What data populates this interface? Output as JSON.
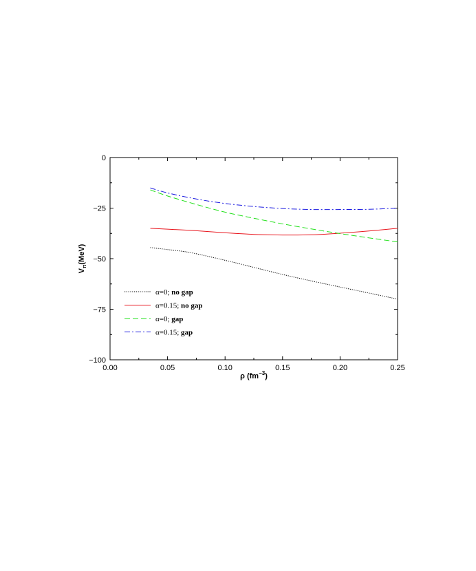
{
  "chart_data": {
    "type": "line",
    "xlabel": {
      "main": "ρ (fm",
      "sup": "−3",
      "tail": ")"
    },
    "ylabel": {
      "main": "V",
      "sub": "π",
      "tail": "(MeV)"
    },
    "xlim": [
      0.0,
      0.25
    ],
    "ylim": [
      -100,
      0
    ],
    "xticks": [
      0.0,
      0.05,
      0.1,
      0.15,
      0.2,
      0.25
    ],
    "xtick_labels": [
      "0.00",
      "0.05",
      "0.10",
      "0.15",
      "0.20",
      "0.25"
    ],
    "yticks": [
      -100,
      -75,
      -50,
      -25,
      0
    ],
    "ytick_labels": [
      "−100",
      "−75",
      "−50",
      "−25",
      "0"
    ],
    "grid": false,
    "legend_position": "lower-left",
    "series": [
      {
        "name": "α=0;  no gap",
        "label_greek": "α=0;",
        "label_text": "no gap",
        "color": "#000000",
        "dash": "1.2,1.6",
        "x": [
          0.035,
          0.05,
          0.07,
          0.1,
          0.125,
          0.15,
          0.175,
          0.2,
          0.225,
          0.25
        ],
        "y": [
          -44.5,
          -45.5,
          -47.0,
          -50.8,
          -54.3,
          -57.8,
          -61.0,
          -64.0,
          -67.0,
          -70.0
        ]
      },
      {
        "name": "α=0.15;  no gap",
        "label_greek": "α=0.15;",
        "label_text": "no gap",
        "color": "#e8141c",
        "dash": "",
        "x": [
          0.035,
          0.05,
          0.075,
          0.1,
          0.125,
          0.15,
          0.175,
          0.2,
          0.225,
          0.25
        ],
        "y": [
          -35.0,
          -35.4,
          -36.2,
          -37.2,
          -38.0,
          -38.3,
          -38.2,
          -37.4,
          -36.3,
          -35.0
        ]
      },
      {
        "name": "α=0;  gap",
        "label_greek": "α=0;",
        "label_text": "gap",
        "color": "#22e01a",
        "dash": "8,4",
        "x": [
          0.035,
          0.05,
          0.075,
          0.1,
          0.125,
          0.15,
          0.175,
          0.2,
          0.225,
          0.25
        ],
        "y": [
          -16.0,
          -19.0,
          -23.2,
          -27.0,
          -30.0,
          -32.8,
          -35.3,
          -37.6,
          -39.7,
          -41.7
        ]
      },
      {
        "name": "α=0.15;  gap",
        "label_greek": "α=0.15;",
        "label_text": "gap",
        "color": "#1a1ae0",
        "dash": "8,3,2,3",
        "x": [
          0.035,
          0.05,
          0.075,
          0.1,
          0.125,
          0.15,
          0.175,
          0.2,
          0.225,
          0.25
        ],
        "y": [
          -15.0,
          -17.5,
          -20.5,
          -22.7,
          -24.2,
          -25.2,
          -25.7,
          -25.7,
          -25.6,
          -25.0
        ]
      }
    ]
  }
}
